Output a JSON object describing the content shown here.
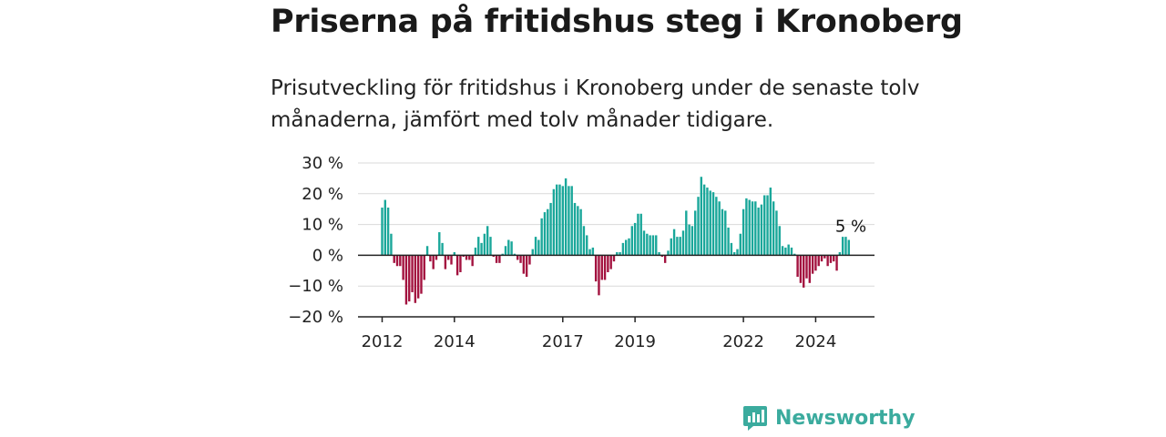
{
  "header": {
    "title": "Priserna på fritidshus steg i Kronoberg",
    "subtitle": "Prisutveckling för fritidshus i Kronoberg under de senaste tolv månaderna, jämfört med tolv månader tidigare."
  },
  "brand": {
    "name": "Newsworthy",
    "icon": "newsworthy-logo-icon",
    "color": "#3bab9e"
  },
  "colors": {
    "positive": "#1aa79a",
    "negative": "#a3123f",
    "grid": "#d9d9d9",
    "axis": "#222222"
  },
  "chart_data": {
    "type": "bar",
    "title": "",
    "xlabel": "",
    "ylabel": "",
    "ylim": [
      -20,
      30
    ],
    "yticks": [
      30,
      20,
      10,
      0,
      -10,
      -20
    ],
    "ytick_labels": [
      "30 %",
      "20 %",
      "10 %",
      "0 %",
      "−10 %",
      "−20 %"
    ],
    "xticks": [
      "2012",
      "2014",
      "2017",
      "2019",
      "2022",
      "2024"
    ],
    "grid": true,
    "legend": "none",
    "last_value_label": "5 %",
    "start": "2012-01",
    "end": "2025-01",
    "values": [
      15.5,
      18,
      15.5,
      7,
      -2.5,
      -3.5,
      -3.5,
      -8,
      -16,
      -15,
      -12,
      -15.5,
      -14,
      -12.5,
      -8,
      3,
      -2,
      -4.5,
      -1.5,
      7.5,
      4,
      -4.5,
      -1.5,
      -3,
      1,
      -6.5,
      -5.5,
      -0.5,
      -1.5,
      -1.5,
      -3.5,
      2.5,
      6,
      4,
      7,
      9.5,
      6,
      -0.5,
      -2.5,
      -2.5,
      0.5,
      3,
      5,
      4.5,
      0.5,
      -1.5,
      -2.5,
      -6,
      -7,
      -3,
      2,
      6,
      5,
      12,
      14,
      15,
      17,
      21.5,
      23,
      23,
      22.5,
      25,
      22.5,
      22.5,
      17,
      16,
      15,
      9.5,
      6.5,
      2,
      2.5,
      -8.5,
      -13,
      -8,
      -8,
      -5.5,
      -4.5,
      -2,
      1,
      1,
      4,
      5,
      5.5,
      9.5,
      10.5,
      13.5,
      13.5,
      8,
      7,
      6.5,
      6.5,
      6.5,
      1,
      -0.5,
      -2.5,
      1.5,
      5.5,
      8.5,
      6,
      6,
      8,
      14.5,
      10,
      9.5,
      14.5,
      19,
      25.5,
      23,
      22,
      21,
      20.5,
      19,
      17.5,
      15,
      14.5,
      9,
      4,
      1,
      2,
      7,
      15,
      18.5,
      18,
      17.5,
      17.5,
      15.5,
      16.5,
      19.5,
      19.5,
      22,
      17.5,
      14.5,
      9.5,
      3,
      2.5,
      3.5,
      2.5,
      0.5,
      -7,
      -9,
      -10.5,
      -7.5,
      -9,
      -6,
      -5,
      -3.5,
      -2,
      -1,
      -3.5,
      -2.5,
      -2,
      -5,
      1,
      6,
      6,
      5
    ]
  }
}
